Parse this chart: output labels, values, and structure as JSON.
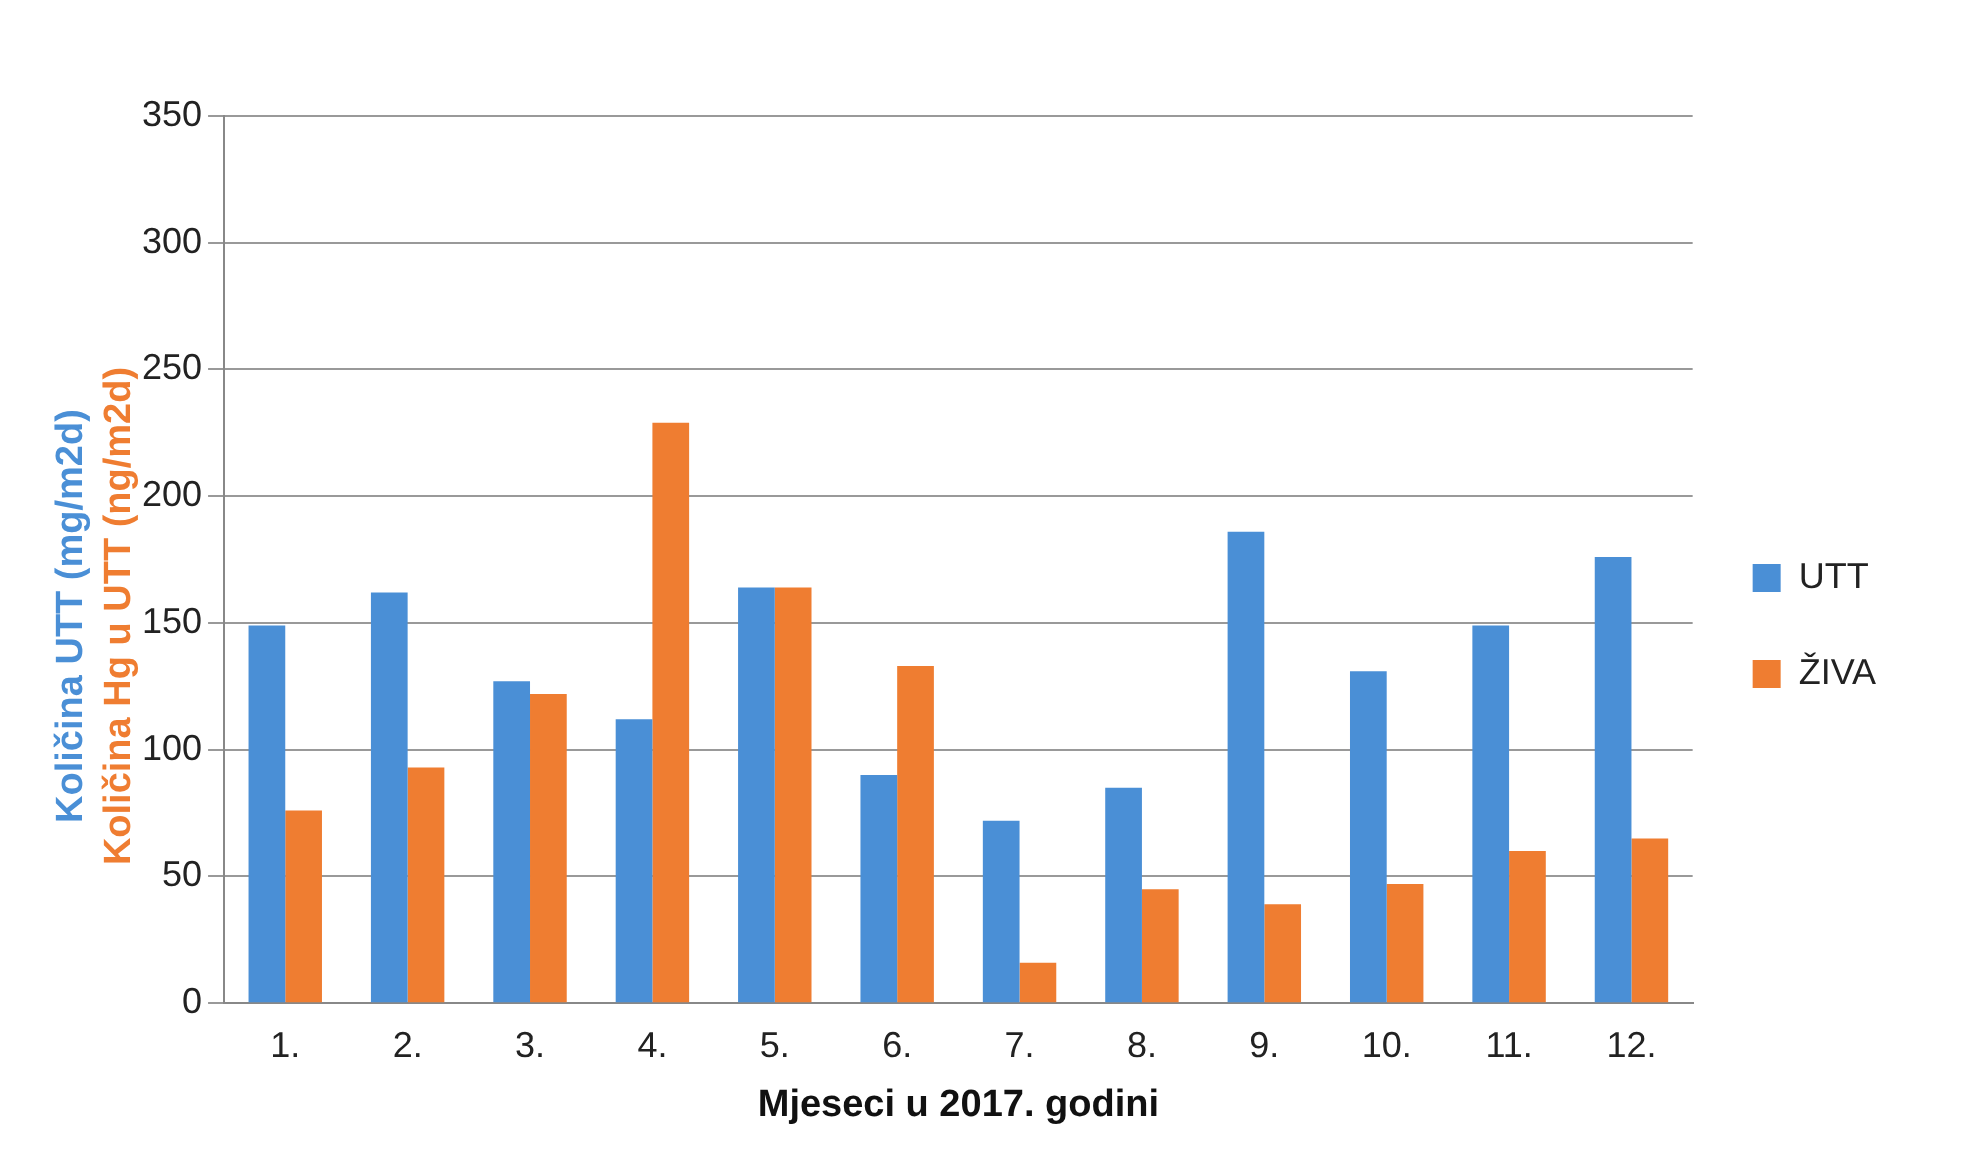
{
  "chart_data": {
    "type": "bar",
    "xlabel": "Mjeseci u 2017. godini",
    "ylabel": "Količina UTT (mg/m2d)\nKoličina Hg u UTT (ng/m2d)",
    "categories": [
      "1.",
      "2.",
      "3.",
      "4.",
      "5.",
      "6.",
      "7.",
      "8.",
      "9.",
      "10.",
      "11.",
      "12."
    ],
    "series": [
      {
        "name": "UTT",
        "color": "#4a8fd6",
        "values": [
          149,
          162,
          127,
          112,
          164,
          90,
          72,
          85,
          186,
          131,
          149,
          176
        ]
      },
      {
        "name": "ŽIVA",
        "color": "#ef7d31",
        "values": [
          76,
          93,
          122,
          229,
          164,
          133,
          16,
          45,
          39,
          47,
          60,
          65
        ]
      }
    ],
    "ylim": [
      0,
      350
    ],
    "yticks": [
      0,
      50,
      100,
      150,
      200,
      250,
      300,
      350
    ],
    "grid": "y",
    "legend": "right"
  }
}
